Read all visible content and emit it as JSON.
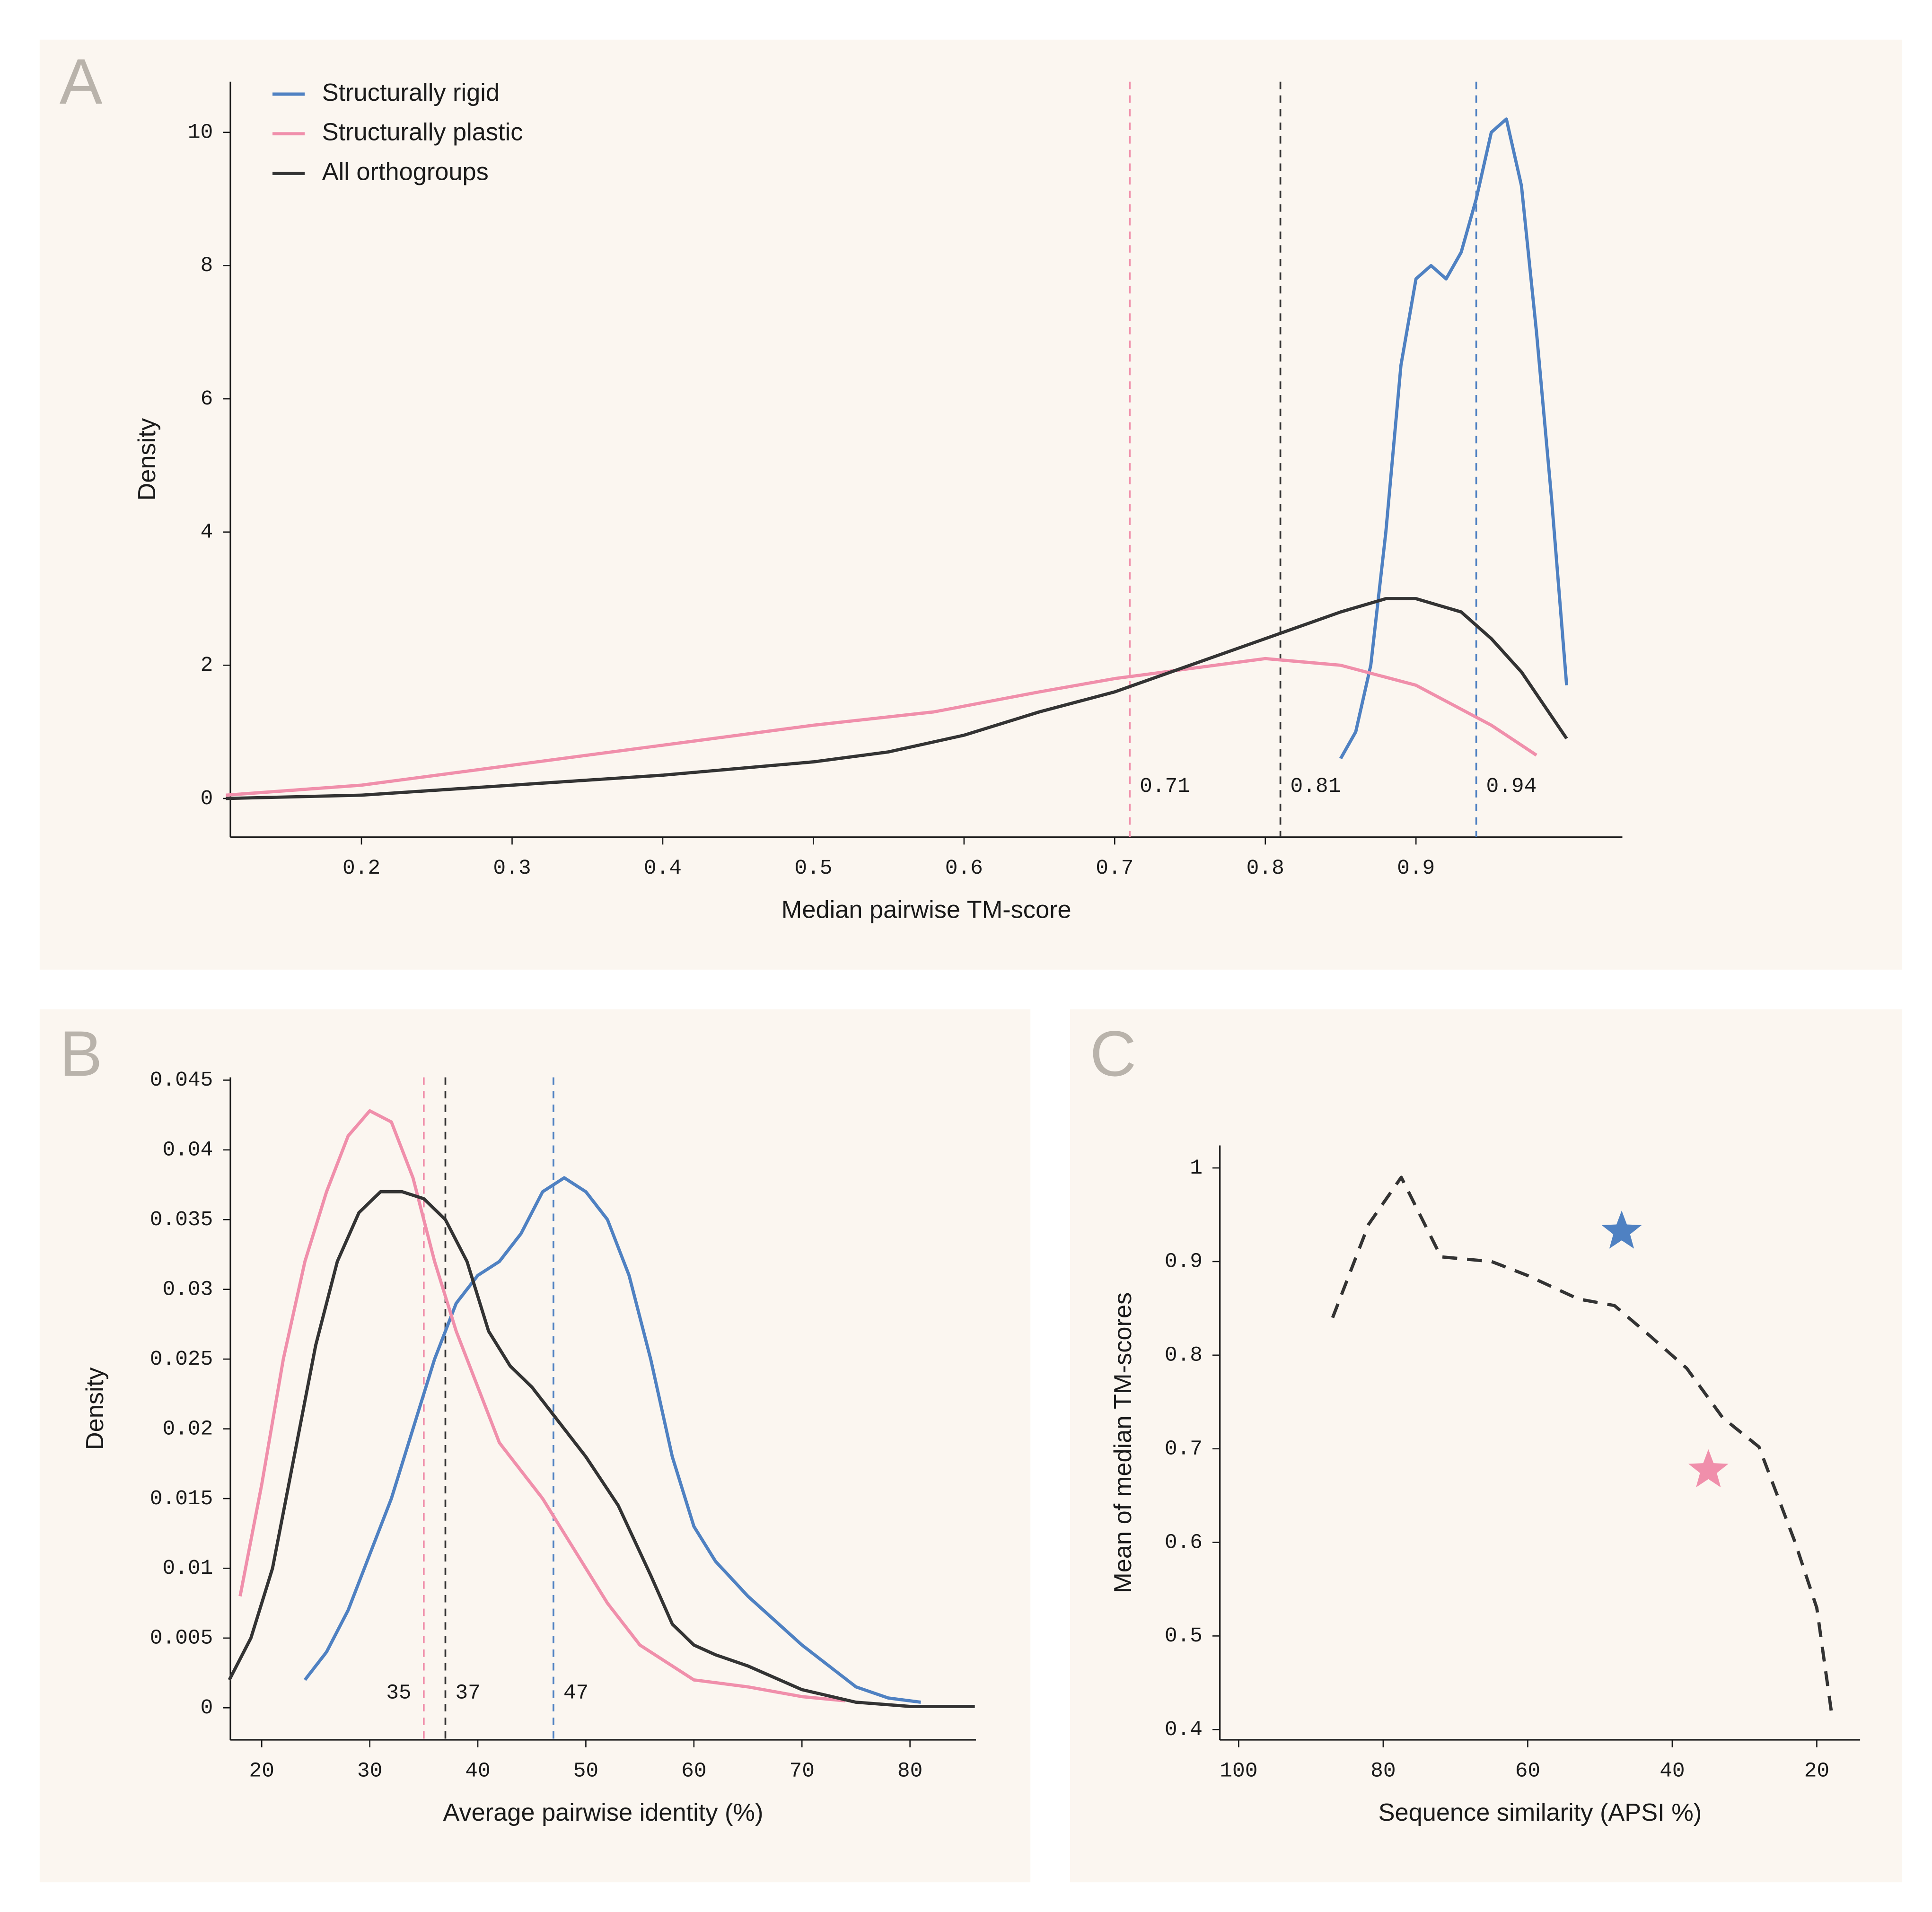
{
  "chart_data": [
    {
      "type": "line",
      "panel": "A",
      "xlabel": "Median pairwise TM-score",
      "ylabel": "Density",
      "xlim": [
        0.113,
        1.037
      ],
      "ylim": [
        -0.58,
        10.76
      ],
      "xticks": [
        0.2,
        0.3,
        0.4,
        0.5,
        0.6,
        0.7,
        0.8,
        0.9
      ],
      "yticks": [
        0,
        2,
        4,
        6,
        8,
        10
      ],
      "legend": "upper left",
      "series": [
        {
          "name": "Structurally rigid",
          "color": "#4f81c2",
          "x": [
            0.85,
            0.86,
            0.87,
            0.88,
            0.89,
            0.9,
            0.91,
            0.92,
            0.93,
            0.94,
            0.95,
            0.96,
            0.97,
            0.98,
            0.99,
            1.0
          ],
          "values": [
            0.6,
            1.0,
            2.0,
            4.0,
            6.5,
            7.8,
            8.0,
            7.8,
            8.2,
            9.0,
            10.0,
            10.2,
            9.2,
            7.0,
            4.5,
            1.7
          ]
        },
        {
          "name": "Structurally plastic",
          "color": "#f08fab",
          "x": [
            0.11,
            0.2,
            0.3,
            0.4,
            0.5,
            0.58,
            0.65,
            0.7,
            0.75,
            0.8,
            0.85,
            0.9,
            0.95,
            0.98
          ],
          "values": [
            0.05,
            0.2,
            0.5,
            0.8,
            1.1,
            1.3,
            1.6,
            1.8,
            1.95,
            2.1,
            2.0,
            1.7,
            1.1,
            0.65
          ]
        },
        {
          "name": "All orthogroups",
          "color": "#333333",
          "x": [
            0.11,
            0.2,
            0.3,
            0.4,
            0.45,
            0.5,
            0.55,
            0.6,
            0.65,
            0.7,
            0.75,
            0.8,
            0.85,
            0.88,
            0.9,
            0.93,
            0.95,
            0.97,
            1.0
          ],
          "values": [
            0.0,
            0.05,
            0.2,
            0.35,
            0.45,
            0.55,
            0.7,
            0.95,
            1.3,
            1.6,
            2.0,
            2.4,
            2.8,
            3.0,
            3.0,
            2.8,
            2.4,
            1.9,
            0.9
          ]
        }
      ],
      "vlines": [
        {
          "value": 0.71,
          "color": "#f08fab"
        },
        {
          "value": 0.81,
          "color": "#333333"
        },
        {
          "value": 0.94,
          "color": "#4f81c2"
        }
      ]
    },
    {
      "type": "line",
      "panel": "B",
      "xlabel": "Average pairwise identity (%)",
      "ylabel": "Density",
      "xlim": [
        17.1,
        86.1
      ],
      "ylim": [
        -0.0023,
        0.0452
      ],
      "xticks": [
        20,
        30,
        40,
        50,
        60,
        70,
        80
      ],
      "yticks": [
        0,
        0.005,
        0.01,
        0.015,
        0.02,
        0.025,
        0.03,
        0.035,
        0.04,
        0.045
      ],
      "series": [
        {
          "color": "#4f81c2",
          "x": [
            24,
            26,
            28,
            30,
            32,
            34,
            36,
            38,
            40,
            42,
            44,
            46,
            48,
            50,
            52,
            54,
            56,
            58,
            60,
            62,
            65,
            70,
            75,
            78,
            81
          ],
          "values": [
            0.002,
            0.004,
            0.007,
            0.011,
            0.015,
            0.02,
            0.025,
            0.029,
            0.031,
            0.032,
            0.034,
            0.037,
            0.038,
            0.037,
            0.035,
            0.031,
            0.025,
            0.018,
            0.013,
            0.0105,
            0.008,
            0.0045,
            0.0015,
            0.0007,
            0.0004
          ]
        },
        {
          "color": "#f08fab",
          "x": [
            18,
            20,
            22,
            24,
            26,
            28,
            30,
            32,
            34,
            36,
            38,
            40,
            42,
            44,
            46,
            48,
            50,
            52,
            55,
            58,
            60,
            65,
            70,
            74
          ],
          "values": [
            0.008,
            0.016,
            0.025,
            0.032,
            0.037,
            0.041,
            0.0428,
            0.042,
            0.038,
            0.032,
            0.027,
            0.023,
            0.019,
            0.017,
            0.015,
            0.0125,
            0.01,
            0.0075,
            0.0045,
            0.003,
            0.002,
            0.0015,
            0.0008,
            0.0005
          ]
        },
        {
          "color": "#333333",
          "x": [
            17,
            19,
            21,
            23,
            25,
            27,
            29,
            31,
            33,
            35,
            37,
            39,
            41,
            43,
            45,
            47,
            50,
            53,
            56,
            58,
            60,
            62,
            65,
            70,
            75,
            80,
            86
          ],
          "values": [
            0.002,
            0.005,
            0.01,
            0.018,
            0.026,
            0.032,
            0.0355,
            0.037,
            0.037,
            0.0365,
            0.035,
            0.032,
            0.027,
            0.0245,
            0.023,
            0.021,
            0.018,
            0.0145,
            0.0095,
            0.006,
            0.0045,
            0.0038,
            0.003,
            0.0013,
            0.0004,
            0.0001,
            0.0001
          ]
        }
      ],
      "vlines": [
        {
          "value": 35,
          "color": "#f08fab"
        },
        {
          "value": 37,
          "color": "#333333"
        },
        {
          "value": 47,
          "color": "#4f81c2"
        }
      ]
    },
    {
      "type": "line",
      "panel": "C",
      "xlabel": "Sequence similarity (APSI %)",
      "ylabel": "Mean of median TM-scores",
      "xlim": [
        102.6,
        14.0
      ],
      "ylim": [
        0.389,
        1.024
      ],
      "xticks": [
        100,
        80,
        60,
        40,
        20
      ],
      "yticks": [
        0.4,
        0.5,
        0.6,
        0.7,
        0.8,
        0.9,
        1
      ],
      "series": [
        {
          "color": "#333333",
          "dashed": true,
          "x": [
            87,
            82,
            77.5,
            72,
            65,
            60,
            53,
            48,
            43,
            38,
            33,
            28,
            23,
            20,
            18
          ],
          "values": [
            0.84,
            0.94,
            0.99,
            0.905,
            0.9,
            0.885,
            0.86,
            0.853,
            0.82,
            0.786,
            0.733,
            0.702,
            0.6,
            0.53,
            0.42
          ]
        }
      ],
      "points": [
        {
          "x": 47,
          "y": 0.932,
          "color": "#4f81c2",
          "marker": "star"
        },
        {
          "x": 35,
          "y": 0.677,
          "color": "#f08fab",
          "marker": "star"
        }
      ]
    }
  ]
}
